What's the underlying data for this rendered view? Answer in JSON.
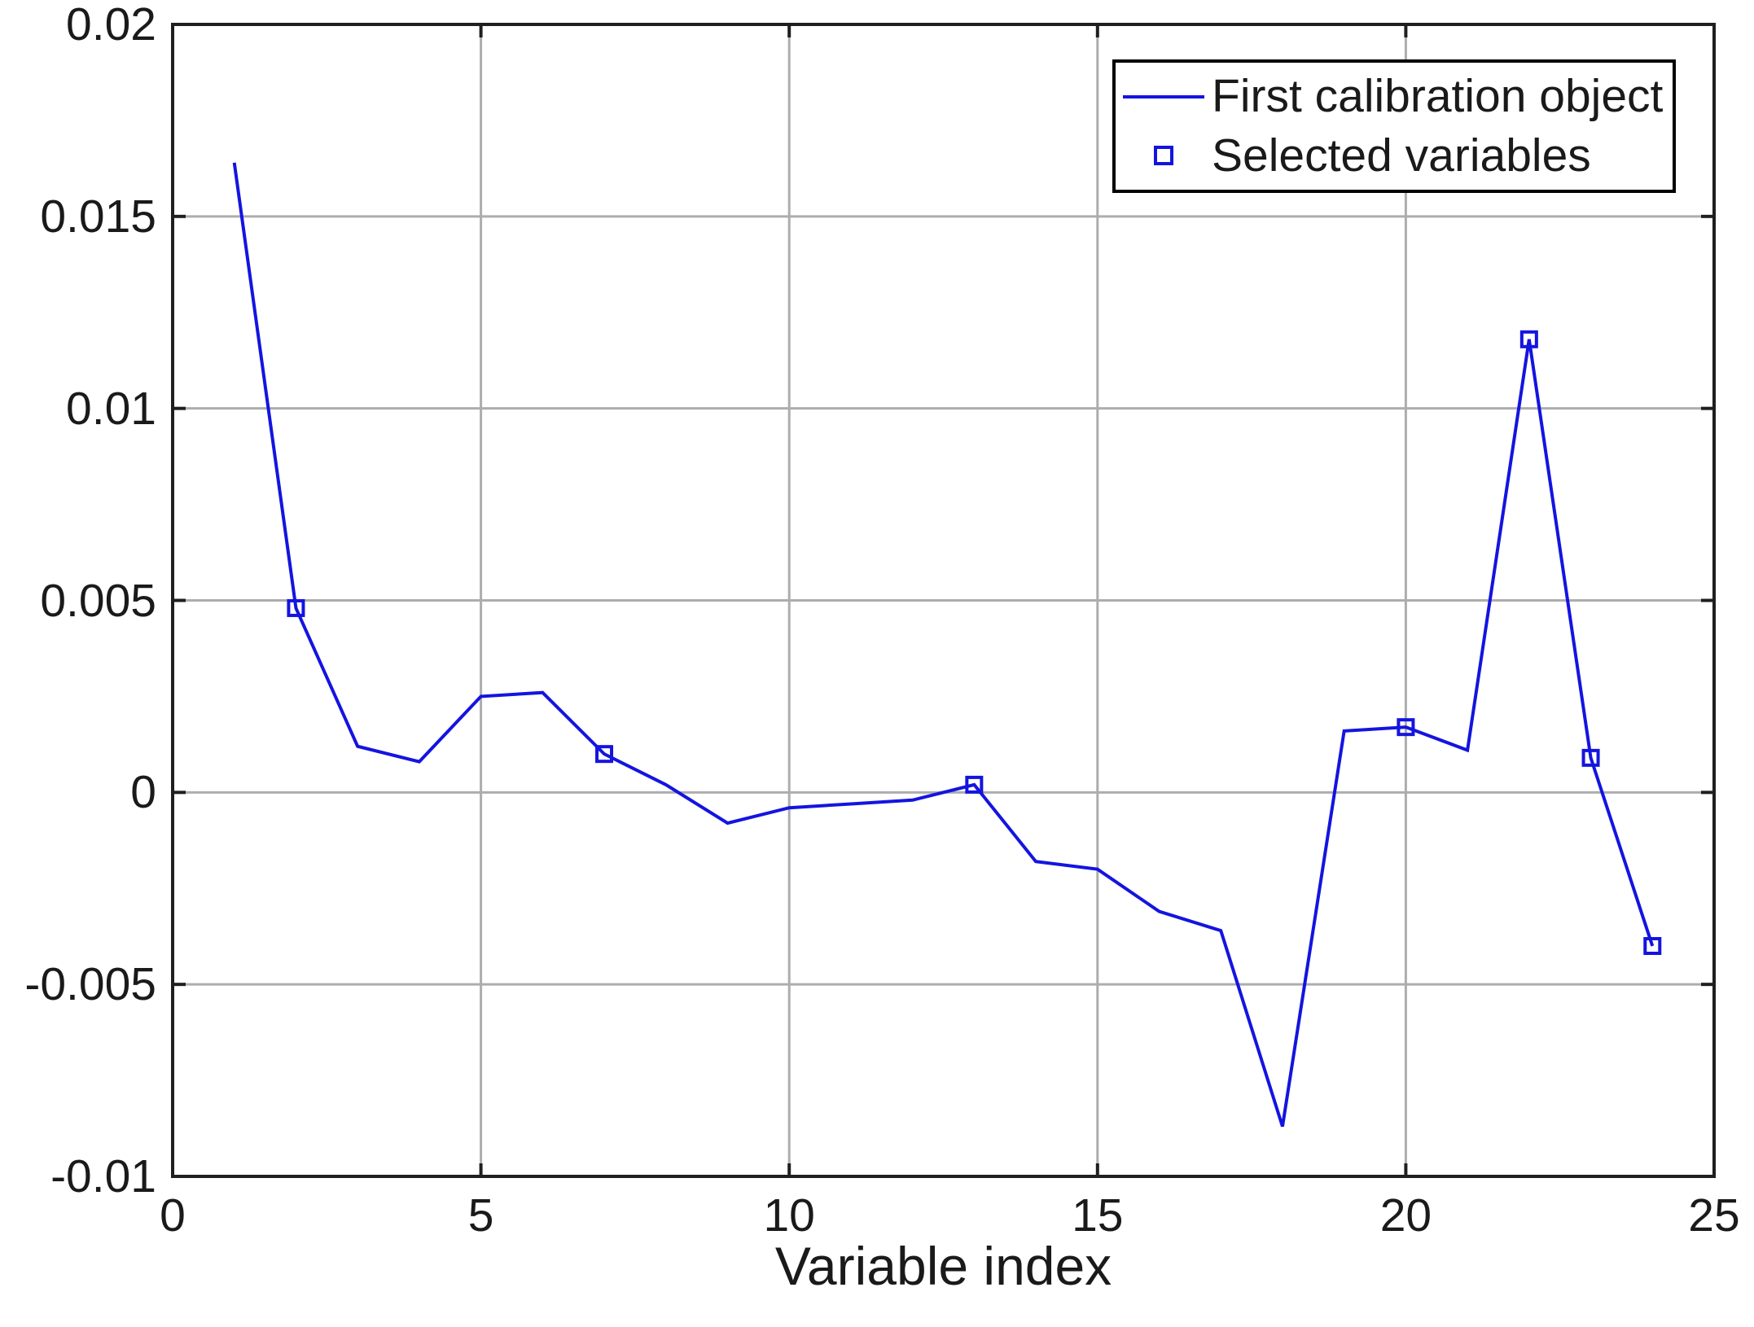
{
  "figure": {
    "background": "#ffffff"
  },
  "chart_data": {
    "type": "line",
    "title": "",
    "xlabel": "Variable index",
    "ylabel": "",
    "xlim": [
      0,
      25
    ],
    "ylim": [
      -0.01,
      0.02
    ],
    "grid": true,
    "legend_position": "top-right",
    "xticks": [
      {
        "v": 0,
        "label": "0"
      },
      {
        "v": 5,
        "label": "5"
      },
      {
        "v": 10,
        "label": "10"
      },
      {
        "v": 15,
        "label": "15"
      },
      {
        "v": 20,
        "label": "20"
      },
      {
        "v": 25,
        "label": "25"
      }
    ],
    "yticks": [
      {
        "v": -0.01,
        "label": "-0.01"
      },
      {
        "v": -0.005,
        "label": "-0.005"
      },
      {
        "v": 0,
        "label": "0"
      },
      {
        "v": 0.005,
        "label": "0.005"
      },
      {
        "v": 0.01,
        "label": "0.01"
      },
      {
        "v": 0.015,
        "label": "0.015"
      },
      {
        "v": 0.02,
        "label": "0.02"
      }
    ],
    "colors": {
      "line": "#1414e0",
      "axis": "#1f1f1f",
      "grid": "#adadad",
      "text": "#1a1a1a"
    },
    "legend": {
      "entries": [
        {
          "label": "First calibration object",
          "sample": "line"
        },
        {
          "label": "Selected variables",
          "sample": "open-square"
        }
      ]
    },
    "series": [
      {
        "name": "First calibration object",
        "type": "line",
        "x": [
          1,
          2,
          3,
          4,
          5,
          6,
          7,
          8,
          9,
          10,
          11,
          12,
          13,
          14,
          15,
          16,
          17,
          18,
          19,
          20,
          21,
          22,
          23,
          24
        ],
        "y": [
          0.0164,
          0.0048,
          0.0012,
          0.0008,
          0.0025,
          0.0026,
          0.001,
          0.0002,
          -0.0008,
          -0.0004,
          -0.0003,
          -0.0002,
          0.0002,
          -0.0018,
          -0.002,
          -0.0031,
          -0.0036,
          -0.0087,
          0.0016,
          0.0017,
          0.0011,
          0.0118,
          0.0009,
          -0.004
        ]
      },
      {
        "name": "Selected variables",
        "type": "scatter-open-square",
        "x": [
          2,
          7,
          13,
          20,
          22,
          23,
          24
        ],
        "y": [
          0.0048,
          0.001,
          0.0002,
          0.0017,
          0.0118,
          0.0009,
          -0.004
        ]
      }
    ]
  }
}
